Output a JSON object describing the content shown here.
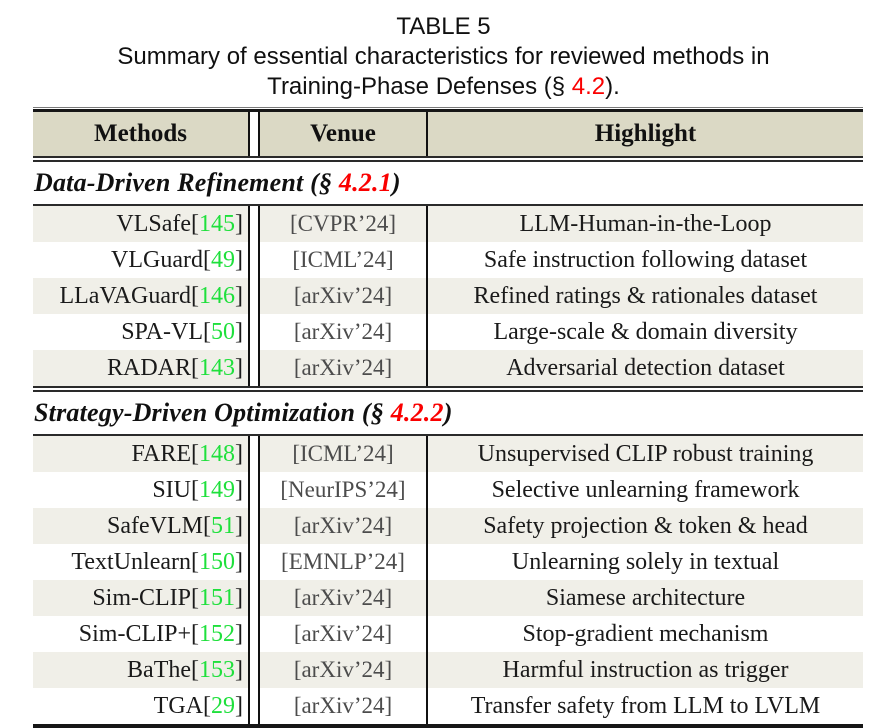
{
  "caption": {
    "label": "TABLE 5",
    "line1": "Summary of essential characteristics for reviewed methods in",
    "line2_prefix": "Training-Phase Defenses (§ ",
    "line2_ref": "4.2",
    "line2_suffix": ")."
  },
  "table": {
    "headers": [
      "Methods",
      "Venue",
      "Highlight"
    ],
    "sections": [
      {
        "title_prefix": "Data-Driven Refinement (§ ",
        "ref": "4.2.1",
        "title_suffix": ")",
        "rows": [
          {
            "method": "VLSafe",
            "cite": "145",
            "venue": "[CVPR’24]",
            "highlight": "LLM-Human-in-the-Loop"
          },
          {
            "method": "VLGuard",
            "cite": "49",
            "venue": "[ICML’24]",
            "highlight": "Safe instruction following dataset"
          },
          {
            "method": "LLaVAGuard",
            "cite": "146",
            "venue": "[arXiv’24]",
            "highlight": "Refined ratings & rationales dataset"
          },
          {
            "method": "SPA-VL",
            "cite": "50",
            "venue": "[arXiv’24]",
            "highlight": "Large-scale & domain diversity"
          },
          {
            "method": "RADAR",
            "cite": "143",
            "venue": "[arXiv’24]",
            "highlight": "Adversarial detection dataset"
          }
        ]
      },
      {
        "title_prefix": "Strategy-Driven Optimization (§ ",
        "ref": "4.2.2",
        "title_suffix": ")",
        "rows": [
          {
            "method": "FARE",
            "cite": "148",
            "venue": "[ICML’24]",
            "highlight": "Unsupervised CLIP robust training"
          },
          {
            "method": "SIU",
            "cite": "149",
            "venue": "[NeurIPS’24]",
            "highlight": "Selective unlearning framework"
          },
          {
            "method": "SafeVLM",
            "cite": "51",
            "venue": "[arXiv’24]",
            "highlight": "Safety projection & token & head"
          },
          {
            "method": "TextUnlearn",
            "cite": "150",
            "venue": "[EMNLP’24]",
            "highlight": "Unlearning solely in textual"
          },
          {
            "method": "Sim-CLIP",
            "cite": "151",
            "venue": "[arXiv’24]",
            "highlight": "Siamese architecture"
          },
          {
            "method": "Sim-CLIP+",
            "cite": "152",
            "venue": "[arXiv’24]",
            "highlight": "Stop-gradient mechanism"
          },
          {
            "method": "BaThe",
            "cite": "153",
            "venue": "[arXiv’24]",
            "highlight": "Harmful instruction as trigger"
          },
          {
            "method": "TGA",
            "cite": "29",
            "venue": "[arXiv’24]",
            "highlight": "Transfer safety from LLM to LVLM"
          }
        ]
      }
    ]
  },
  "colors": {
    "citation_green": "#1fe03c",
    "section_ref_red": "#fa0000",
    "venue_gray": "#4c4c4c",
    "header_bg": "#dbd9c5",
    "stripe_bg": "#f0efe8",
    "rule": "#2a2a2a"
  }
}
